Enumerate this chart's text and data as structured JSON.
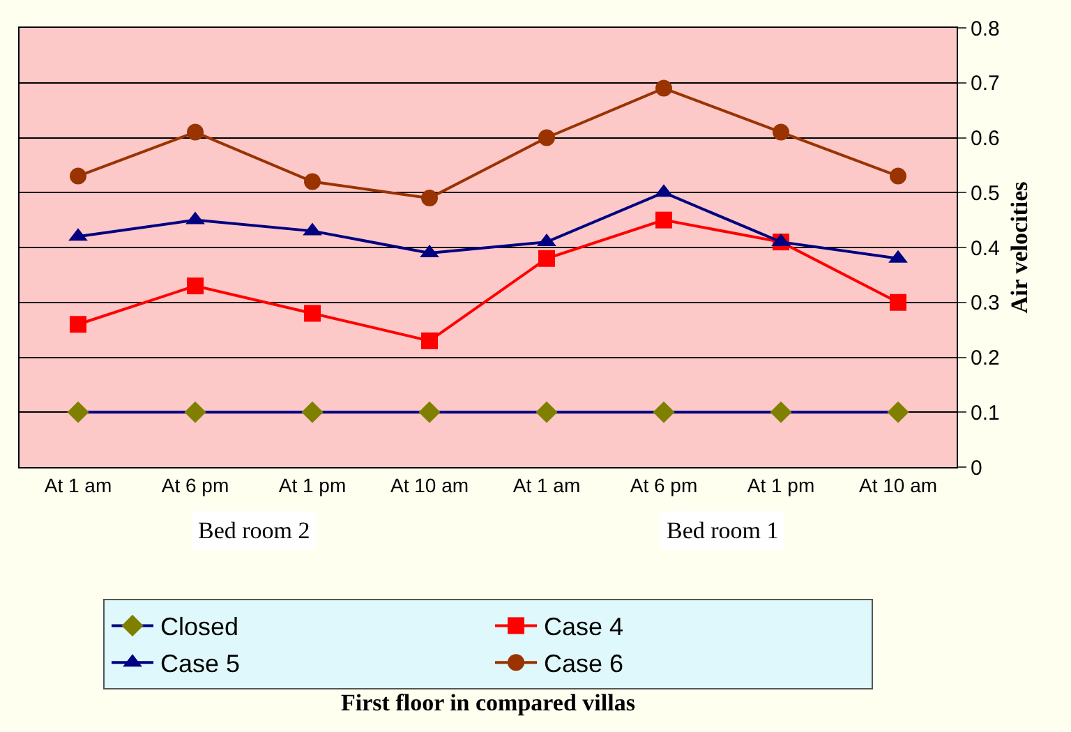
{
  "chart_data": {
    "type": "line",
    "title": "First floor in compared villas",
    "ylabel": "Air velocities",
    "categories": [
      "At 1 am",
      "At 6 pm",
      "At 1 pm",
      "At 10 am",
      "At 1 am",
      "At 6 pm",
      "At 1 pm",
      "At 10 am"
    ],
    "series": [
      {
        "name": "Closed",
        "color": "#000080",
        "colors": [
          "#808000",
          "#808000",
          "#808000",
          "#808000",
          "#808000",
          "#808000",
          "#808000",
          "#808000"
        ],
        "marker": "diamond",
        "values": [
          0.1,
          0.1,
          0.1,
          0.1,
          0.1,
          0.1,
          0.1,
          0.1
        ]
      },
      {
        "name": "Case 4",
        "color": "#ff0000",
        "marker": "square",
        "values": [
          0.26,
          0.33,
          0.28,
          0.23,
          0.38,
          0.45,
          0.41,
          0.3
        ]
      },
      {
        "name": "Case 5",
        "color": "#000080",
        "marker": "triangle",
        "values": [
          0.42,
          0.45,
          0.43,
          0.39,
          0.41,
          0.5,
          0.41,
          0.38
        ]
      },
      {
        "name": "Case 6",
        "color": "#993300",
        "marker": "circle",
        "values": [
          0.53,
          0.61,
          0.52,
          0.49,
          0.6,
          0.69,
          0.61,
          0.53
        ]
      }
    ],
    "annotations": [
      "Bed room 2",
      "Bed room 1"
    ],
    "ylim": [
      0,
      0.8
    ],
    "yticks": [
      0,
      0.1,
      0.2,
      0.3,
      0.4,
      0.5,
      0.6,
      0.7,
      0.8
    ],
    "grid": "y",
    "legend": "bottom",
    "line_style": "solid"
  }
}
